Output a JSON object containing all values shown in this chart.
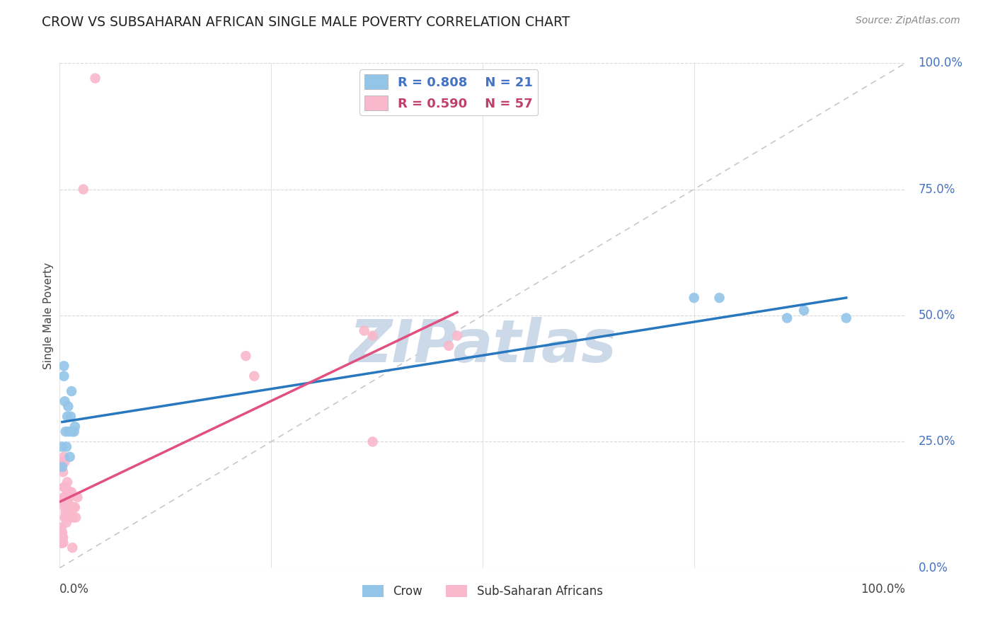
{
  "title": "CROW VS SUBSAHARAN AFRICAN SINGLE MALE POVERTY CORRELATION CHART",
  "source": "Source: ZipAtlas.com",
  "ylabel": "Single Male Poverty",
  "crow_R": 0.808,
  "crow_N": 21,
  "ssa_R": 0.59,
  "ssa_N": 57,
  "crow_color": "#93c5e8",
  "ssa_color": "#f9b8cb",
  "crow_line_color": "#2878c0",
  "ssa_line_color": "#e05080",
  "diagonal_color": "#c8c8c8",
  "background_color": "#ffffff",
  "grid_color": "#d8d8d8",
  "crow_points": [
    [
      0.003,
      0.2
    ],
    [
      0.005,
      0.4
    ],
    [
      0.005,
      0.38
    ],
    [
      0.006,
      0.33
    ],
    [
      0.007,
      0.27
    ],
    [
      0.008,
      0.24
    ],
    [
      0.009,
      0.3
    ],
    [
      0.01,
      0.32
    ],
    [
      0.011,
      0.27
    ],
    [
      0.012,
      0.22
    ],
    [
      0.013,
      0.3
    ],
    [
      0.014,
      0.35
    ],
    [
      0.015,
      0.27
    ],
    [
      0.017,
      0.27
    ],
    [
      0.018,
      0.28
    ],
    [
      0.003,
      0.24
    ],
    [
      0.75,
      0.535
    ],
    [
      0.78,
      0.535
    ],
    [
      0.86,
      0.495
    ],
    [
      0.88,
      0.51
    ],
    [
      0.93,
      0.495
    ]
  ],
  "ssa_points": [
    [
      0.001,
      0.05
    ],
    [
      0.001,
      0.06
    ],
    [
      0.001,
      0.05
    ],
    [
      0.002,
      0.05
    ],
    [
      0.002,
      0.05
    ],
    [
      0.002,
      0.06
    ],
    [
      0.002,
      0.07
    ],
    [
      0.002,
      0.08
    ],
    [
      0.003,
      0.05
    ],
    [
      0.003,
      0.05
    ],
    [
      0.003,
      0.06
    ],
    [
      0.003,
      0.07
    ],
    [
      0.003,
      0.05
    ],
    [
      0.003,
      0.05
    ],
    [
      0.004,
      0.05
    ],
    [
      0.004,
      0.06
    ],
    [
      0.004,
      0.05
    ],
    [
      0.004,
      0.21
    ],
    [
      0.004,
      0.19
    ],
    [
      0.005,
      0.22
    ],
    [
      0.005,
      0.14
    ],
    [
      0.005,
      0.16
    ],
    [
      0.005,
      0.13
    ],
    [
      0.006,
      0.21
    ],
    [
      0.006,
      0.12
    ],
    [
      0.006,
      0.16
    ],
    [
      0.006,
      0.1
    ],
    [
      0.007,
      0.14
    ],
    [
      0.007,
      0.14
    ],
    [
      0.007,
      0.16
    ],
    [
      0.007,
      0.11
    ],
    [
      0.008,
      0.1
    ],
    [
      0.008,
      0.09
    ],
    [
      0.009,
      0.13
    ],
    [
      0.009,
      0.13
    ],
    [
      0.009,
      0.17
    ],
    [
      0.01,
      0.13
    ],
    [
      0.01,
      0.11
    ],
    [
      0.011,
      0.14
    ],
    [
      0.012,
      0.1
    ],
    [
      0.013,
      0.15
    ],
    [
      0.014,
      0.15
    ],
    [
      0.015,
      0.04
    ],
    [
      0.016,
      0.1
    ],
    [
      0.017,
      0.12
    ],
    [
      0.018,
      0.12
    ],
    [
      0.019,
      0.1
    ],
    [
      0.021,
      0.14
    ],
    [
      0.028,
      0.75
    ],
    [
      0.042,
      0.97
    ],
    [
      0.22,
      0.42
    ],
    [
      0.23,
      0.38
    ],
    [
      0.36,
      0.47
    ],
    [
      0.37,
      0.46
    ],
    [
      0.46,
      0.44
    ],
    [
      0.47,
      0.46
    ],
    [
      0.37,
      0.25
    ]
  ],
  "watermark_text": "ZIPatlas",
  "watermark_color": "#ccd9e8"
}
